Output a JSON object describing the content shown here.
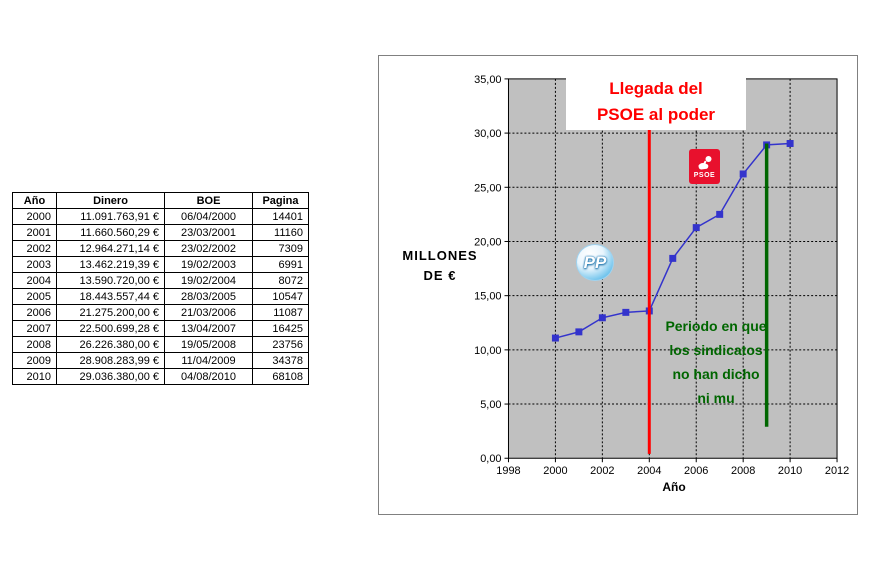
{
  "table": {
    "headers": [
      "Año",
      "Dinero",
      "BOE",
      "Pagina"
    ],
    "rows": [
      [
        "2000",
        "11.091.763,91 €",
        "06/04/2000",
        "14401"
      ],
      [
        "2001",
        "11.660.560,29 €",
        "23/03/2001",
        "11160"
      ],
      [
        "2002",
        "12.964.271,14 €",
        "23/02/2002",
        "7309"
      ],
      [
        "2003",
        "13.462.219,39 €",
        "19/02/2003",
        "6991"
      ],
      [
        "2004",
        "13.590.720,00 €",
        "19/02/2004",
        "8072"
      ],
      [
        "2005",
        "18.443.557,44 €",
        "28/03/2005",
        "10547"
      ],
      [
        "2006",
        "21.275.200,00 €",
        "21/03/2006",
        "11087"
      ],
      [
        "2007",
        "22.500.699,28 €",
        "13/04/2007",
        "16425"
      ],
      [
        "2008",
        "26.226.380,00 €",
        "19/05/2008",
        "23756"
      ],
      [
        "2009",
        "28.908.283,99 €",
        "11/04/2009",
        "34378"
      ],
      [
        "2010",
        "29.036.380,00 €",
        "04/08/2010",
        "68108"
      ]
    ]
  },
  "chart_data": {
    "type": "line",
    "xlabel": "Año",
    "ylabel_lines": [
      "MILLONES",
      "DE €"
    ],
    "x": [
      2000,
      2001,
      2002,
      2003,
      2004,
      2005,
      2006,
      2007,
      2008,
      2009,
      2010
    ],
    "values": [
      11.09,
      11.66,
      12.96,
      13.46,
      13.59,
      18.44,
      21.28,
      22.5,
      26.23,
      28.91,
      29.04
    ],
    "xlim": [
      1998,
      2012
    ],
    "ylim": [
      0,
      35
    ],
    "x_tick_labels": [
      "1998",
      "2000",
      "2002",
      "2004",
      "2006",
      "2008",
      "2010",
      "2012"
    ],
    "y_tick_labels": [
      "0,00",
      "5,00",
      "10,00",
      "15,00",
      "20,00",
      "25,00",
      "30,00",
      "35,00"
    ],
    "grid": "dotted-both",
    "legend": "none",
    "plot_bg_color": "#c0c0c0",
    "series_color": "#3333cc",
    "event_lines": [
      {
        "name": "psoe-arrival",
        "x": 2004,
        "y_from": 0.4,
        "y_to": 33.2,
        "color": "#ff0000",
        "width": 3
      },
      {
        "name": "union-silence-period",
        "x": 2009,
        "y_from": 2.9,
        "y_to": 29.04,
        "color": "#006600",
        "width": 3.5
      }
    ],
    "annotations": [
      {
        "name": "psoe-arrival-label",
        "lines": [
          "Llegada del",
          "PSOE al poder"
        ],
        "color": "#ff0000"
      },
      {
        "name": "union-silence-label",
        "lines": [
          "Periodo en que",
          "los sindicatos",
          "no han dicho",
          "ni mu"
        ],
        "color": "#006600"
      }
    ]
  },
  "logos": {
    "psoe_label": "PSOE",
    "psoe_bg_color": "#e8112d",
    "pp_label": "PP",
    "pp_blue_color": "#2596d1"
  }
}
